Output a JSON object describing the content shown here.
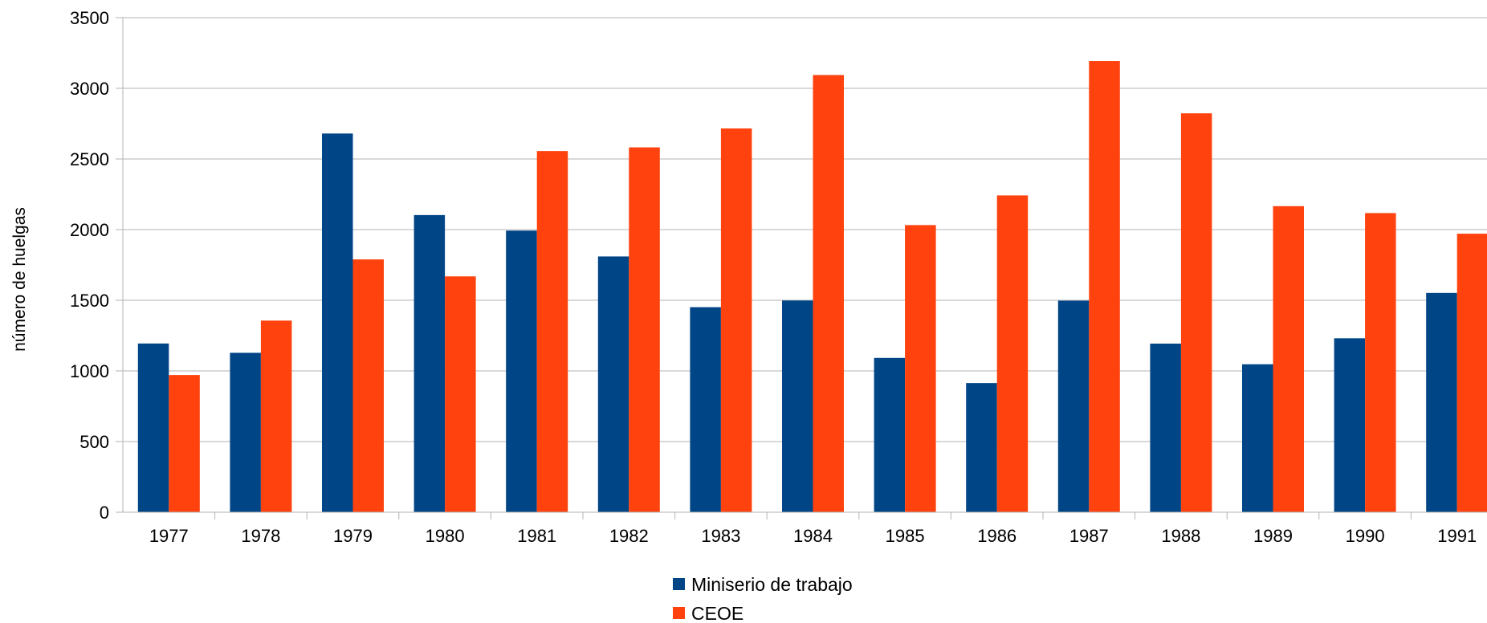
{
  "chart_data": {
    "type": "bar",
    "title": "",
    "xlabel": "",
    "ylabel": "número de huelgas",
    "ylim": [
      0,
      3500
    ],
    "yticks": [
      0,
      500,
      1000,
      1500,
      2000,
      2500,
      3000,
      3500
    ],
    "grid": true,
    "legend_position": "bottom",
    "categories": [
      "1977",
      "1978",
      "1979",
      "1980",
      "1981",
      "1982",
      "1983",
      "1984",
      "1985",
      "1986",
      "1987",
      "1988",
      "1989",
      "1990",
      "1991"
    ],
    "series": [
      {
        "name": "Miniserio de trabajo",
        "color": "#004586",
        "values": [
          1194,
          1128,
          2680,
          2103,
          1993,
          1810,
          1451,
          1498,
          1092,
          914,
          1497,
          1193,
          1047,
          1231,
          1552
        ]
      },
      {
        "name": "CEOE",
        "color": "#ff420e",
        "values": [
          971,
          1356,
          1789,
          1669,
          2556,
          2582,
          2716,
          3094,
          2032,
          2242,
          3193,
          2823,
          2166,
          2117,
          1971
        ]
      }
    ]
  }
}
